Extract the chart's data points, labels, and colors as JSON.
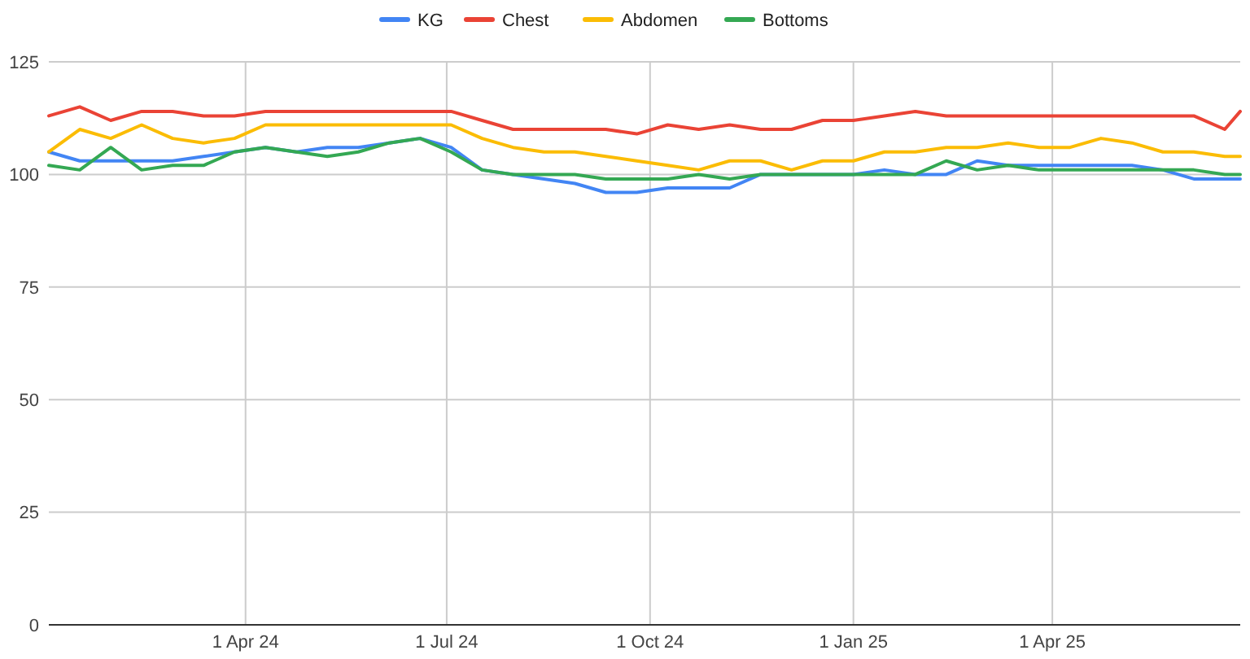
{
  "chart_data": {
    "type": "line",
    "x": [
      "2024-01-03",
      "2024-01-17",
      "2024-01-31",
      "2024-02-14",
      "2024-02-28",
      "2024-03-13",
      "2024-03-27",
      "2024-04-10",
      "2024-04-24",
      "2024-05-08",
      "2024-05-22",
      "2024-06-05",
      "2024-06-19",
      "2024-07-03",
      "2024-07-17",
      "2024-07-31",
      "2024-08-14",
      "2024-08-28",
      "2024-09-11",
      "2024-09-25",
      "2024-10-09",
      "2024-10-23",
      "2024-11-06",
      "2024-11-20",
      "2024-12-04",
      "2024-12-18",
      "2025-01-01",
      "2025-01-15",
      "2025-01-29",
      "2025-02-12",
      "2025-02-26",
      "2025-03-12",
      "2025-03-26",
      "2025-04-09",
      "2025-04-23",
      "2025-05-07",
      "2025-05-21",
      "2025-06-04",
      "2025-06-18",
      "2025-06-25"
    ],
    "series": [
      {
        "name": "KG",
        "color": "#4285f4",
        "values": [
          105,
          103,
          103,
          103,
          103,
          104,
          105,
          106,
          105,
          106,
          106,
          107,
          108,
          106,
          101,
          100,
          99,
          98,
          96,
          96,
          97,
          97,
          97,
          100,
          100,
          100,
          100,
          101,
          100,
          100,
          103,
          102,
          102,
          102,
          102,
          102,
          101,
          99,
          99,
          99
        ]
      },
      {
        "name": "Chest",
        "color": "#ea4335",
        "values": [
          113,
          115,
          112,
          114,
          114,
          113,
          113,
          114,
          114,
          114,
          114,
          114,
          114,
          114,
          112,
          110,
          110,
          110,
          110,
          109,
          111,
          110,
          111,
          110,
          110,
          112,
          112,
          113,
          114,
          113,
          113,
          113,
          113,
          113,
          113,
          113,
          113,
          113,
          110,
          114
        ]
      },
      {
        "name": "Abdomen",
        "color": "#fbbc04",
        "values": [
          105,
          110,
          108,
          111,
          108,
          107,
          108,
          111,
          111,
          111,
          111,
          111,
          111,
          111,
          108,
          106,
          105,
          105,
          104,
          103,
          102,
          101,
          103,
          103,
          101,
          103,
          103,
          105,
          105,
          106,
          106,
          107,
          106,
          106,
          108,
          107,
          105,
          105,
          104,
          104
        ]
      },
      {
        "name": "Bottoms",
        "color": "#34a853",
        "values": [
          102,
          101,
          106,
          101,
          102,
          102,
          105,
          106,
          105,
          104,
          105,
          107,
          108,
          105,
          101,
          100,
          100,
          100,
          99,
          99,
          99,
          100,
          99,
          100,
          100,
          100,
          100,
          100,
          100,
          103,
          101,
          102,
          101,
          101,
          101,
          101,
          101,
          101,
          100,
          100
        ]
      }
    ],
    "xlim": [
      "2024-01-03",
      "2025-06-25"
    ],
    "xticks": [
      {
        "value": "2024-04-01",
        "label": "1 Apr 24"
      },
      {
        "value": "2024-07-01",
        "label": "1 Jul 24"
      },
      {
        "value": "2024-10-01",
        "label": "1 Oct 24"
      },
      {
        "value": "2025-01-01",
        "label": "1 Jan 25"
      },
      {
        "value": "2025-04-01",
        "label": "1 Apr 25"
      }
    ],
    "ylim": [
      0,
      125
    ],
    "yticks": [
      0,
      25,
      50,
      75,
      100,
      125
    ],
    "grid": true,
    "legend": "top",
    "marker": "none",
    "line_style": "solid"
  }
}
